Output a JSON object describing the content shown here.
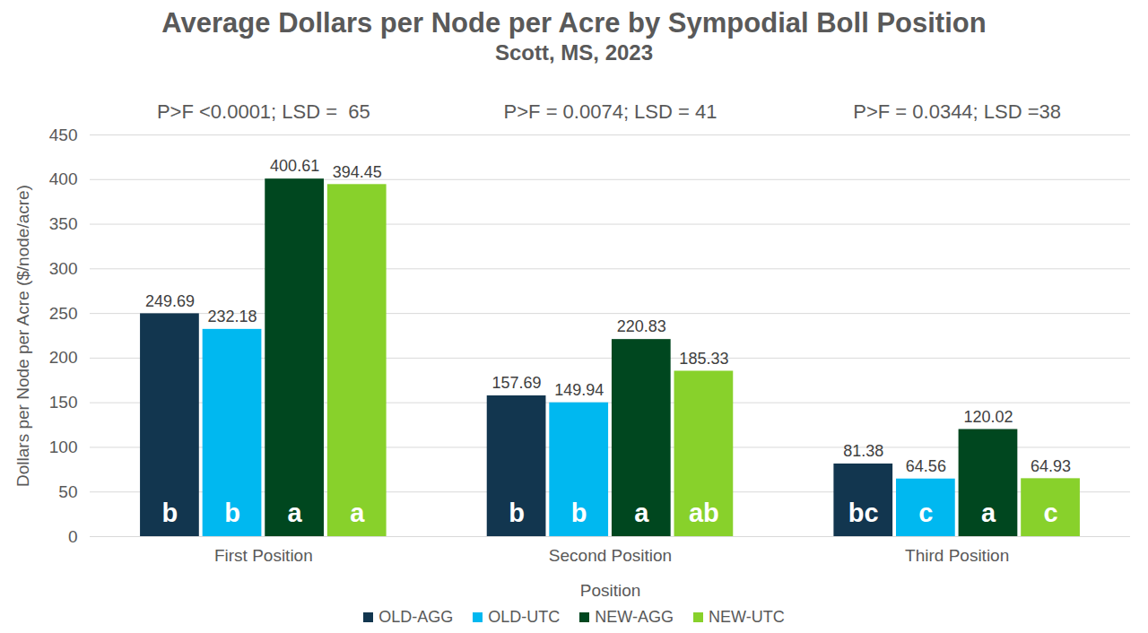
{
  "chart_data": {
    "type": "bar",
    "title": "Average Dollars per Node per Acre by Sympodial Boll Position",
    "subtitle": "Scott, MS, 2023",
    "x_label": "Position",
    "y_label": "Dollars per Node per Acre ($/node/acre)",
    "categories": [
      "First Position",
      "Second Position",
      "Third Position"
    ],
    "annotations": [
      "P>F <0.0001; LSD =  65",
      "P>F = 0.0074; LSD = 41",
      "P>F = 0.0344; LSD =38"
    ],
    "series": [
      {
        "name": "OLD-AGG",
        "color": "#12364f",
        "values": [
          249.69,
          157.69,
          81.38
        ],
        "letters": [
          "b",
          "b",
          "bc"
        ]
      },
      {
        "name": "OLD-UTC",
        "color": "#00b8f0",
        "values": [
          232.18,
          149.94,
          64.56
        ],
        "letters": [
          "b",
          "b",
          "c"
        ]
      },
      {
        "name": "NEW-AGG",
        "color": "#00471f",
        "values": [
          400.61,
          220.83,
          120.02
        ],
        "letters": [
          "a",
          "a",
          "a"
        ]
      },
      {
        "name": "NEW-UTC",
        "color": "#88d12b",
        "values": [
          394.45,
          185.33,
          64.93
        ],
        "letters": [
          "a",
          "ab",
          "c"
        ]
      }
    ],
    "ylim": [
      0,
      450
    ],
    "yticks": [
      0,
      50,
      100,
      150,
      200,
      250,
      300,
      350,
      400,
      450
    ],
    "grid": true,
    "data_labels": true,
    "legend": "bottom"
  }
}
